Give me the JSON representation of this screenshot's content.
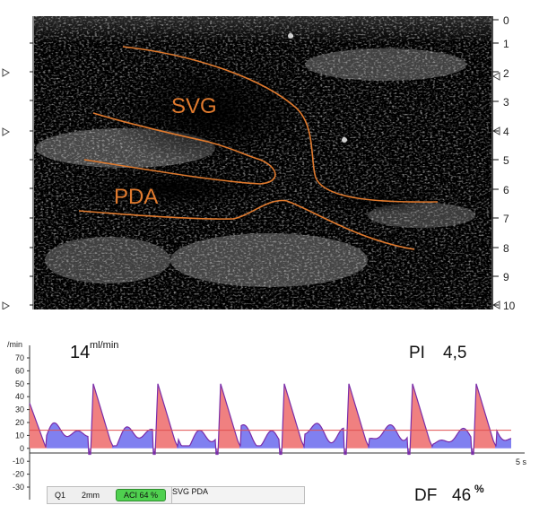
{
  "ultrasound": {
    "depth_scale": [
      "0",
      "1",
      "2",
      "3",
      "4",
      "5",
      "6",
      "7",
      "8",
      "9",
      "10"
    ],
    "labels": {
      "svg": "SVG",
      "pda": "PDA"
    },
    "outline_color": "#e07a2e"
  },
  "flow": {
    "unit": "/min",
    "y_ticks": [
      "70",
      "60",
      "50",
      "40",
      "30",
      "20",
      "10",
      "0",
      "-10",
      "-20",
      "-30"
    ],
    "time_label": "5 s",
    "flow_value": "14",
    "flow_unit": "ml/min",
    "pi_label": "PI",
    "pi_value": "4,5",
    "df_label": "DF",
    "df_value": "46",
    "df_unit": "%",
    "baseline_color": "#e05050",
    "systole_color": "#f08080",
    "diastole_color": "#8080f0",
    "waveform_color": "#7a2ca8"
  },
  "status_bar": {
    "gate": "Q1",
    "probe_size": "2mm",
    "aci": "ACI 64 %",
    "vessel": "SVG PDA"
  }
}
